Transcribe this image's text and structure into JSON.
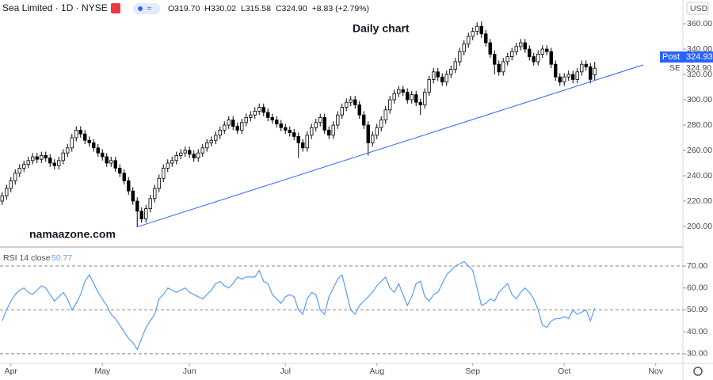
{
  "header": {
    "symbol": "Sea Limited · 1D · NYSE",
    "ohlc": [
      "O319.70",
      "H330.02",
      "L315.58",
      "C324.90",
      "+8.83 (+2.79%)"
    ]
  },
  "currency": "USD",
  "price_tags": {
    "post_label": "Post",
    "post_price": "324.93",
    "last_price": "324.90",
    "ticker": "SE"
  },
  "chart_data": [
    {
      "type": "candlestick",
      "annotations": [
        "Daily chart",
        "namaazone.com"
      ],
      "up_color": "#ffffff",
      "down_color": "#000000",
      "edge_color": "#000000",
      "xlim": [
        -0.5,
        156.23
      ],
      "xticks": [
        {
          "value": 2,
          "label": "Apr"
        },
        {
          "value": 23,
          "label": "May"
        },
        {
          "value": 43,
          "label": "Jun"
        },
        {
          "value": 65,
          "label": "Jul"
        },
        {
          "value": 86,
          "label": "Aug"
        },
        {
          "value": 108,
          "label": "Sep"
        },
        {
          "value": 129,
          "label": "Oct"
        },
        {
          "value": 150,
          "label": "Nov"
        }
      ],
      "ylim": [
        185,
        378.75
      ],
      "yticks": [
        {
          "value": 200,
          "label": "200.00"
        },
        {
          "value": 220,
          "label": "220.00"
        },
        {
          "value": 240,
          "label": "240.00"
        },
        {
          "value": 260,
          "label": "260.00"
        },
        {
          "value": 280,
          "label": "280.00"
        },
        {
          "value": 300,
          "label": "300.00"
        },
        {
          "value": 320,
          "label": "320.00"
        },
        {
          "value": 340,
          "label": "340.00"
        },
        {
          "value": 360,
          "label": "360.00"
        }
      ],
      "trendline": {
        "x": [
          30.8,
          147.1
        ],
        "y": [
          199.4,
          327.5
        ],
        "color": "#2962ff"
      },
      "open": [
        220,
        224,
        230,
        236,
        242,
        246,
        249,
        252,
        255,
        253,
        256,
        254,
        250,
        248,
        252,
        258,
        262,
        270,
        276,
        273,
        268,
        266,
        262,
        258,
        255,
        250,
        252,
        246,
        242,
        236,
        228,
        220,
        212,
        206,
        214,
        222,
        230,
        238,
        246,
        250,
        252,
        256,
        258,
        260,
        257,
        254,
        258,
        262,
        266,
        268,
        272,
        276,
        280,
        284,
        279,
        276,
        282,
        286,
        288,
        291,
        294,
        290,
        286,
        284,
        281,
        278,
        276,
        274,
        271,
        266,
        262,
        272,
        278,
        282,
        286,
        276,
        272,
        280,
        288,
        294,
        298,
        300,
        296,
        288,
        280,
        266,
        272,
        278,
        284,
        292,
        300,
        305,
        308,
        306,
        300,
        304,
        298,
        296,
        306,
        316,
        322,
        318,
        314,
        320,
        324,
        330,
        338,
        344,
        350,
        354,
        358,
        352,
        345,
        336,
        328,
        322,
        330,
        334,
        338,
        342,
        345,
        340,
        334,
        330,
        336,
        340,
        338,
        328,
        318,
        314,
        318,
        320,
        316,
        322,
        328,
        326,
        319.7
      ],
      "high": [
        227,
        233,
        239,
        245,
        249,
        252,
        255,
        258,
        258,
        259,
        259,
        257,
        253,
        255,
        261,
        265,
        273,
        279,
        279,
        276,
        271,
        269,
        265,
        261,
        258,
        255,
        255,
        249,
        245,
        239,
        231,
        223,
        215,
        217,
        225,
        233,
        241,
        249,
        253,
        255,
        259,
        261,
        263,
        263,
        260,
        261,
        265,
        269,
        271,
        275,
        279,
        283,
        287,
        287,
        282,
        285,
        289,
        291,
        294,
        297,
        297,
        293,
        289,
        287,
        284,
        281,
        279,
        277,
        274,
        269,
        275,
        281,
        285,
        289,
        289,
        279,
        283,
        291,
        297,
        301,
        303,
        303,
        299,
        291,
        283,
        275,
        281,
        287,
        295,
        303,
        308,
        311,
        311,
        309,
        307,
        307,
        301,
        309,
        319,
        325,
        325,
        321,
        323,
        327,
        333,
        341,
        347,
        353,
        357,
        361,
        362,
        355,
        348,
        339,
        331,
        333,
        337,
        341,
        345,
        348,
        348,
        343,
        337,
        339,
        343,
        343,
        341,
        331,
        321,
        321,
        323,
        323,
        325,
        331,
        331,
        329,
        330.02
      ],
      "low": [
        217,
        221,
        227,
        233,
        239,
        243,
        246,
        249,
        250,
        250,
        251,
        247,
        245,
        245,
        249,
        255,
        259,
        267,
        270,
        265,
        263,
        259,
        255,
        252,
        247,
        247,
        243,
        239,
        233,
        225,
        217,
        200,
        203,
        203,
        211,
        219,
        227,
        235,
        243,
        247,
        249,
        253,
        255,
        254,
        251,
        251,
        255,
        259,
        263,
        265,
        269,
        273,
        277,
        276,
        273,
        273,
        279,
        283,
        285,
        288,
        287,
        283,
        281,
        278,
        275,
        273,
        271,
        268,
        254,
        259,
        259,
        269,
        275,
        279,
        273,
        269,
        269,
        277,
        285,
        291,
        295,
        293,
        285,
        277,
        256,
        263,
        269,
        275,
        281,
        289,
        297,
        302,
        303,
        297,
        297,
        295,
        288,
        293,
        303,
        313,
        315,
        311,
        311,
        317,
        321,
        327,
        335,
        341,
        347,
        351,
        349,
        342,
        333,
        320,
        319,
        319,
        327,
        331,
        335,
        339,
        337,
        331,
        327,
        327,
        333,
        335,
        325,
        315,
        311,
        311,
        315,
        313,
        313,
        319,
        323,
        313,
        315.58
      ],
      "close": [
        224,
        230,
        236,
        242,
        246,
        249,
        252,
        255,
        253,
        256,
        254,
        250,
        248,
        252,
        258,
        262,
        270,
        276,
        273,
        268,
        266,
        262,
        258,
        255,
        250,
        252,
        246,
        242,
        236,
        228,
        220,
        212,
        206,
        214,
        222,
        230,
        238,
        246,
        250,
        252,
        256,
        258,
        260,
        257,
        254,
        258,
        262,
        266,
        268,
        272,
        276,
        280,
        284,
        279,
        276,
        282,
        286,
        288,
        291,
        294,
        290,
        286,
        284,
        281,
        278,
        276,
        274,
        271,
        266,
        262,
        272,
        278,
        282,
        286,
        276,
        272,
        280,
        288,
        294,
        298,
        300,
        296,
        288,
        280,
        266,
        272,
        278,
        284,
        292,
        300,
        305,
        308,
        306,
        300,
        304,
        298,
        296,
        306,
        316,
        322,
        318,
        314,
        320,
        324,
        330,
        338,
        344,
        350,
        354,
        358,
        352,
        345,
        336,
        328,
        322,
        330,
        334,
        338,
        342,
        345,
        340,
        334,
        330,
        336,
        340,
        338,
        328,
        318,
        314,
        318,
        320,
        316,
        322,
        328,
        326,
        316.07,
        324.9
      ]
    },
    {
      "type": "line",
      "title": "RSI 14 close",
      "color": "#5b9cf6",
      "xlim": [
        -0.5,
        156.23
      ],
      "ylim": [
        26,
        78.3
      ],
      "yticks": [
        {
          "value": 30,
          "label": "30.00"
        },
        {
          "value": 40,
          "label": "40.00"
        },
        {
          "value": 50,
          "label": "50.00"
        },
        {
          "value": 60,
          "label": "60.00"
        },
        {
          "value": 70,
          "label": "70.00"
        }
      ],
      "band_lines": [
        30,
        50,
        70
      ],
      "values": [
        45,
        50,
        54,
        57,
        59,
        60,
        58,
        57,
        59,
        61,
        60,
        57,
        54,
        56,
        58,
        55,
        50,
        53,
        57,
        63,
        66,
        62,
        58,
        55,
        52,
        48,
        46,
        43,
        40,
        37,
        35,
        32,
        37,
        42,
        45,
        48,
        55,
        57,
        60,
        59,
        58,
        59,
        60,
        58,
        57,
        56,
        55,
        57,
        59,
        62,
        63,
        61,
        60,
        62,
        65,
        64,
        65,
        65,
        65,
        68,
        63,
        62,
        57,
        55,
        53,
        56,
        57,
        56,
        50,
        48,
        55,
        58,
        57,
        50,
        48,
        56,
        60,
        64,
        66,
        58,
        50,
        48,
        52,
        54,
        56,
        58,
        61,
        63,
        65,
        60,
        58,
        62,
        57,
        52,
        56,
        62,
        63,
        56,
        54,
        57,
        58,
        62,
        66,
        68,
        70,
        71,
        72,
        70,
        68,
        60,
        52,
        53,
        55,
        54,
        58,
        60,
        62,
        57,
        55,
        58,
        60,
        58,
        55,
        50,
        43,
        42,
        45,
        46,
        46,
        47,
        46,
        50,
        48,
        49,
        50,
        45,
        50.77
      ]
    }
  ]
}
